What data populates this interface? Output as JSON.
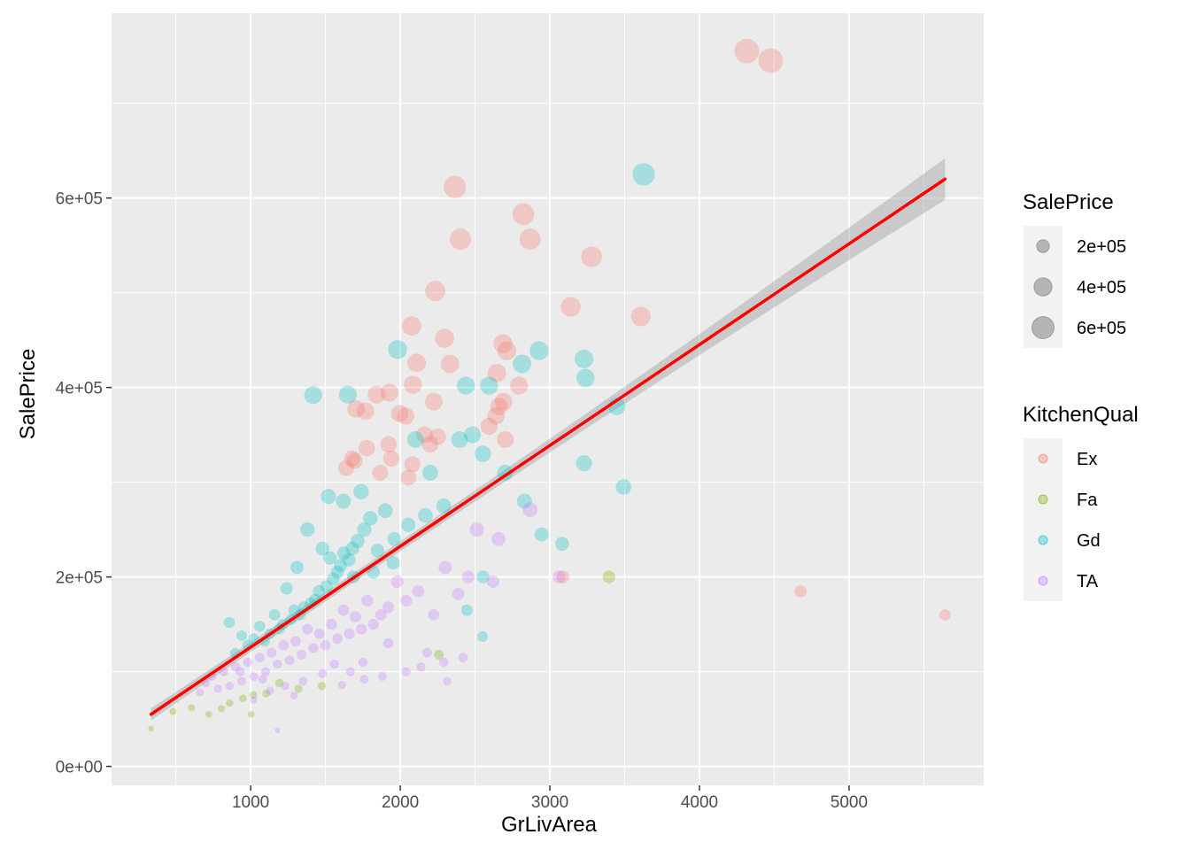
{
  "chart_data": {
    "type": "scatter",
    "x_var": "GrLivArea",
    "y_var": "SalePrice",
    "xlabel": "GrLivArea",
    "ylabel": "SalePrice",
    "xlim": [
      70,
      5900
    ],
    "ylim": [
      -20000,
      795000
    ],
    "x_ticks": [
      1000,
      2000,
      3000,
      4000,
      5000
    ],
    "x_tick_labels": [
      "1000",
      "2000",
      "3000",
      "4000",
      "5000"
    ],
    "y_ticks": [
      0,
      200000,
      400000,
      600000
    ],
    "y_tick_labels": [
      "0e+00",
      "2e+05",
      "4e+05",
      "6e+05"
    ],
    "grid": true,
    "point_alpha": 0.3,
    "size_legend": {
      "title": "SalePrice",
      "entries": [
        {
          "label": "2e+05",
          "value": 200000
        },
        {
          "label": "4e+05",
          "value": 400000
        },
        {
          "label": "6e+05",
          "value": 600000
        }
      ]
    },
    "color_legend": {
      "title": "KitchenQual",
      "entries": [
        {
          "label": "Ex",
          "color": "#F8766D"
        },
        {
          "label": "Fa",
          "color": "#7CAE00"
        },
        {
          "label": "Gd",
          "color": "#00BFC4"
        },
        {
          "label": "TA",
          "color": "#C77CFF"
        }
      ]
    },
    "legend_position": "right",
    "trend_line": {
      "method": "lm",
      "color": "#FF0000",
      "x": [
        334,
        5642
      ],
      "y": [
        55000,
        620000
      ],
      "band_color": "#999999"
    },
    "series": [
      {
        "name": "Ex",
        "color": "#F8766D",
        "points": [
          [
            4316,
            755000
          ],
          [
            4476,
            745000
          ],
          [
            2364,
            611657
          ],
          [
            2822,
            582933
          ],
          [
            2402,
            556581
          ],
          [
            2868,
            556581
          ],
          [
            3279,
            538000
          ],
          [
            2234,
            501837
          ],
          [
            3140,
            485000
          ],
          [
            3608,
            475000
          ],
          [
            2076,
            465000
          ],
          [
            2296,
            451950
          ],
          [
            2687,
            446261
          ],
          [
            2713,
            438780
          ],
          [
            2109,
            426000
          ],
          [
            2332,
            424870
          ],
          [
            2646,
            415298
          ],
          [
            1928,
            394617
          ],
          [
            2084,
            402861
          ],
          [
            2794,
            402000
          ],
          [
            2224,
            385000
          ],
          [
            1842,
            392500
          ],
          [
            2690,
            385000
          ],
          [
            2660,
            380000
          ],
          [
            2640,
            370000
          ],
          [
            1704,
            377500
          ],
          [
            1767,
            375000
          ],
          [
            2036,
            369900
          ],
          [
            2594,
            359100
          ],
          [
            1996,
            372500
          ],
          [
            2162,
            350000
          ],
          [
            2250,
            348000
          ],
          [
            2702,
            345000
          ],
          [
            1922,
            340000
          ],
          [
            1776,
            336000
          ],
          [
            2200,
            340000
          ],
          [
            1678,
            325000
          ],
          [
            1940,
            325000
          ],
          [
            1694,
            322500
          ],
          [
            2081,
            319000
          ],
          [
            1638,
            315000
          ],
          [
            1866,
            310000
          ],
          [
            2054,
            305000
          ],
          [
            3086,
            200000
          ],
          [
            4676,
            184750
          ],
          [
            5642,
            160000
          ]
        ]
      },
      {
        "name": "Fa",
        "color": "#7CAE00",
        "points": [
          [
            3395,
            200000
          ],
          [
            2258,
            118000
          ],
          [
            1476,
            84900
          ],
          [
            1320,
            82000
          ],
          [
            1104,
            77000
          ],
          [
            1018,
            75500
          ],
          [
            948,
            72000
          ],
          [
            860,
            67000
          ],
          [
            804,
            61000
          ],
          [
            720,
            55000
          ],
          [
            605,
            62000
          ],
          [
            480,
            58000
          ],
          [
            334,
            40000
          ],
          [
            1004,
            55000
          ],
          [
            1192,
            88000
          ]
        ]
      },
      {
        "name": "Gd",
        "color": "#00BFC4",
        "points": [
          [
            3627,
            625000
          ],
          [
            1418,
            392000
          ],
          [
            1650,
            392500
          ],
          [
            1982,
            440000
          ],
          [
            2438,
            402000
          ],
          [
            2594,
            402000
          ],
          [
            2928,
            438780
          ],
          [
            2814,
            424870
          ],
          [
            3228,
            430000
          ],
          [
            3238,
            410000
          ],
          [
            2102,
            345000
          ],
          [
            2396,
            345000
          ],
          [
            2482,
            350000
          ],
          [
            2552,
            330000
          ],
          [
            2700,
            310000
          ],
          [
            2200,
            310000
          ],
          [
            3447,
            380000
          ],
          [
            3228,
            320000
          ],
          [
            3493,
            295000
          ],
          [
            2944,
            245000
          ],
          [
            3082,
            235000
          ],
          [
            2553,
            200000
          ],
          [
            2550,
            137000
          ],
          [
            2446,
            165000
          ],
          [
            2290,
            275000
          ],
          [
            2168,
            265000
          ],
          [
            2054,
            255000
          ],
          [
            1960,
            240000
          ],
          [
            1900,
            270000
          ],
          [
            1848,
            228000
          ],
          [
            1800,
            262000
          ],
          [
            1760,
            250000
          ],
          [
            1714,
            238000
          ],
          [
            1680,
            230000
          ],
          [
            1656,
            218000
          ],
          [
            1622,
            225000
          ],
          [
            1600,
            212000
          ],
          [
            1580,
            205000
          ],
          [
            1552,
            198000
          ],
          [
            1530,
            220000
          ],
          [
            1506,
            190000
          ],
          [
            1480,
            230000
          ],
          [
            1456,
            185000
          ],
          [
            1430,
            176000
          ],
          [
            1400,
            172000
          ],
          [
            1380,
            250000
          ],
          [
            1356,
            168000
          ],
          [
            1330,
            160000
          ],
          [
            1310,
            210000
          ],
          [
            1290,
            165000
          ],
          [
            1268,
            155000
          ],
          [
            1240,
            188000
          ],
          [
            1214,
            150000
          ],
          [
            1190,
            145000
          ],
          [
            1160,
            160000
          ],
          [
            1128,
            140000
          ],
          [
            1094,
            132000
          ],
          [
            1060,
            148000
          ],
          [
            1020,
            135000
          ],
          [
            980,
            128000
          ],
          [
            940,
            138000
          ],
          [
            896,
            120000
          ],
          [
            856,
            152000
          ],
          [
            1738,
            290000
          ],
          [
            1620,
            280000
          ],
          [
            1520,
            285000
          ],
          [
            2830,
            280000
          ],
          [
            1686,
            200000
          ],
          [
            1820,
            205000
          ],
          [
            1952,
            215000
          ]
        ]
      },
      {
        "name": "TA",
        "color": "#C77CFF",
        "points": [
          [
            2868,
            271000
          ],
          [
            2656,
            240000
          ],
          [
            2512,
            250000
          ],
          [
            2454,
            200000
          ],
          [
            2388,
            182000
          ],
          [
            2300,
            210000
          ],
          [
            2224,
            160000
          ],
          [
            2120,
            185000
          ],
          [
            2040,
            175000
          ],
          [
            1980,
            195000
          ],
          [
            1920,
            168000
          ],
          [
            1870,
            160000
          ],
          [
            1820,
            150000
          ],
          [
            1780,
            175000
          ],
          [
            1740,
            145000
          ],
          [
            1700,
            158000
          ],
          [
            1660,
            140000
          ],
          [
            1620,
            165000
          ],
          [
            1580,
            135000
          ],
          [
            1540,
            150000
          ],
          [
            1500,
            128000
          ],
          [
            1460,
            140000
          ],
          [
            1420,
            125000
          ],
          [
            1380,
            145000
          ],
          [
            1340,
            118000
          ],
          [
            1300,
            132000
          ],
          [
            1260,
            112000
          ],
          [
            1220,
            128000
          ],
          [
            1180,
            108000
          ],
          [
            1140,
            120000
          ],
          [
            1100,
            100000
          ],
          [
            1060,
            115000
          ],
          [
            1020,
            95000
          ],
          [
            980,
            110000
          ],
          [
            940,
            90000
          ],
          [
            900,
            105000
          ],
          [
            860,
            85000
          ],
          [
            820,
            100000
          ],
          [
            780,
            82000
          ],
          [
            740,
            95000
          ],
          [
            700,
            88000
          ],
          [
            660,
            78000
          ],
          [
            2180,
            120000
          ],
          [
            2420,
            115000
          ],
          [
            2290,
            110000
          ],
          [
            2138,
            105000
          ],
          [
            1920,
            130000
          ],
          [
            1750,
            110000
          ],
          [
            1666,
            100000
          ],
          [
            1560,
            108000
          ],
          [
            1480,
            98000
          ],
          [
            1350,
            90000
          ],
          [
            1230,
            85000
          ],
          [
            1130,
            80000
          ],
          [
            1080,
            92000
          ],
          [
            3060,
            200000
          ],
          [
            2620,
            195000
          ],
          [
            2314,
            90000
          ],
          [
            2040,
            100000
          ],
          [
            1880,
            95000
          ],
          [
            1760,
            92000
          ],
          [
            1610,
            86000
          ],
          [
            1290,
            75000
          ],
          [
            1020,
            70000
          ],
          [
            1180,
            38000
          ],
          [
            930,
            100000
          ]
        ]
      }
    ]
  }
}
